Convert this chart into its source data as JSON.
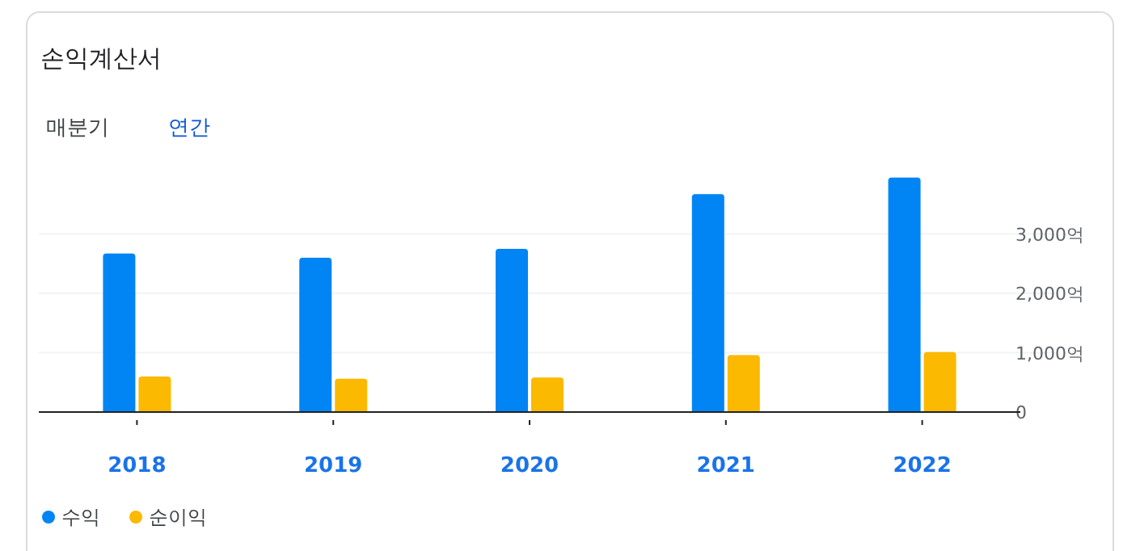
{
  "chart_data": {
    "type": "bar",
    "title": "손익계산서",
    "annotations": [
      "매분기",
      "연간"
    ],
    "categories": [
      "2018",
      "2019",
      "2020",
      "2021",
      "2022"
    ],
    "series": [
      {
        "name": "수익",
        "color": "#0285f4",
        "values": [
          2670,
          2600,
          2750,
          3670,
          3950
        ]
      },
      {
        "name": "순이익",
        "color": "#fbb902",
        "values": [
          600,
          560,
          580,
          960,
          1010
        ]
      }
    ],
    "ylim": [
      0,
      4000
    ],
    "yticks": [
      {
        "value": 0,
        "label": "0"
      },
      {
        "value": 1000,
        "label": "1,000억"
      },
      {
        "value": 2000,
        "label": "2,000억"
      },
      {
        "value": 3000,
        "label": "3,000억"
      }
    ],
    "grid": "y",
    "legend": "bottom left"
  }
}
